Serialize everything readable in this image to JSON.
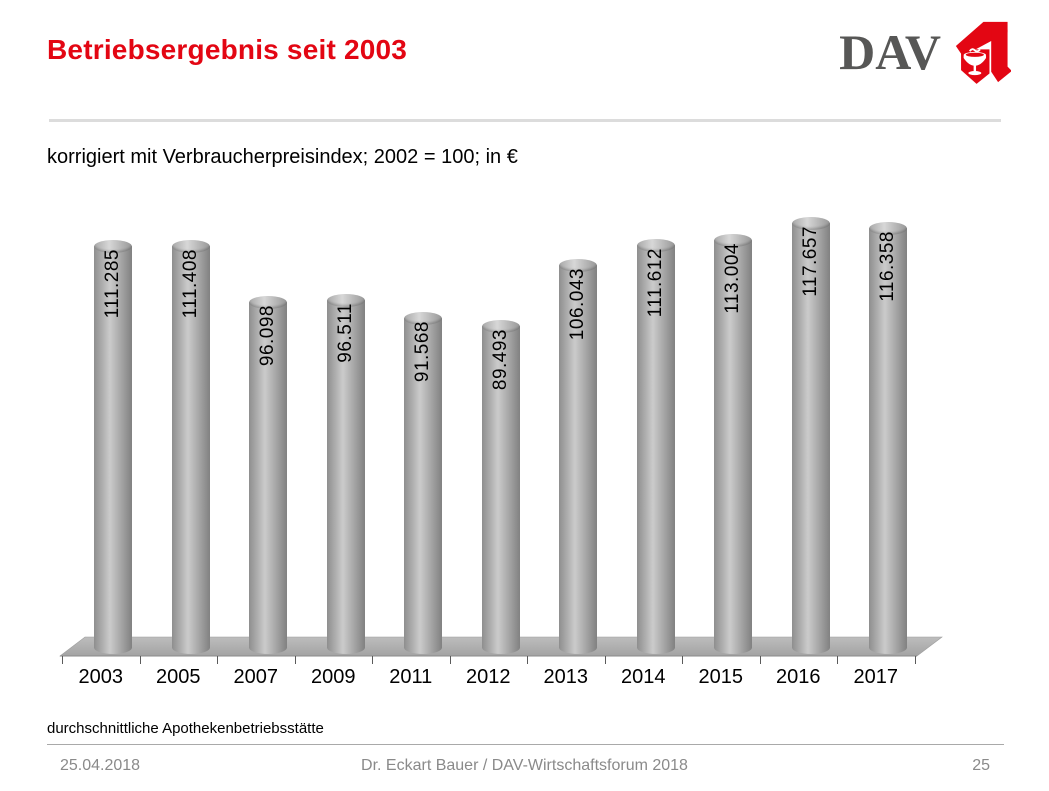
{
  "header": {
    "title": "Betriebsergebnis seit 2003",
    "logo_text": "DAV"
  },
  "subtitle": "korrigiert mit Verbraucherpreisindex; 2002 = 100; in €",
  "note": "durchschnittliche Apothekenbetriebsstätte",
  "footer": {
    "date": "25.04.2018",
    "author": "Dr. Eckart Bauer / DAV-Wirtschaftsforum 2018",
    "page": "25"
  },
  "colors": {
    "title_red": "#e30613",
    "logo_gray": "#575756",
    "apotheke_a_red": "#e30613",
    "bar_highlight": "#cbcbcb",
    "bar_edge": "#8e8e8e",
    "floor_gray": "#b0b0b0",
    "footer_gray": "#8a8a8a"
  },
  "chart_data": {
    "type": "bar",
    "style": "3d-cylinder",
    "title": "Betriebsergebnis seit 2003",
    "subtitle": "korrigiert mit Verbraucherpreisindex; 2002 = 100; in €",
    "unit": "€",
    "categories": [
      "2003",
      "2005",
      "2007",
      "2009",
      "2011",
      "2012",
      "2013",
      "2014",
      "2015",
      "2016",
      "2017"
    ],
    "values": [
      111285,
      111408,
      96098,
      96511,
      91568,
      89493,
      106043,
      111612,
      113004,
      117657,
      116358
    ],
    "value_labels": [
      "111.285",
      "111.408",
      "96.098",
      "96.511",
      "91.568",
      "89.493",
      "106.043",
      "111.612",
      "113.004",
      "117.657",
      "116.358"
    ],
    "label_rotation": "vertical-bottom-to-top",
    "ylim": [
      0,
      130000
    ],
    "grid": false,
    "legend": false,
    "xlabel": "",
    "ylabel": ""
  }
}
